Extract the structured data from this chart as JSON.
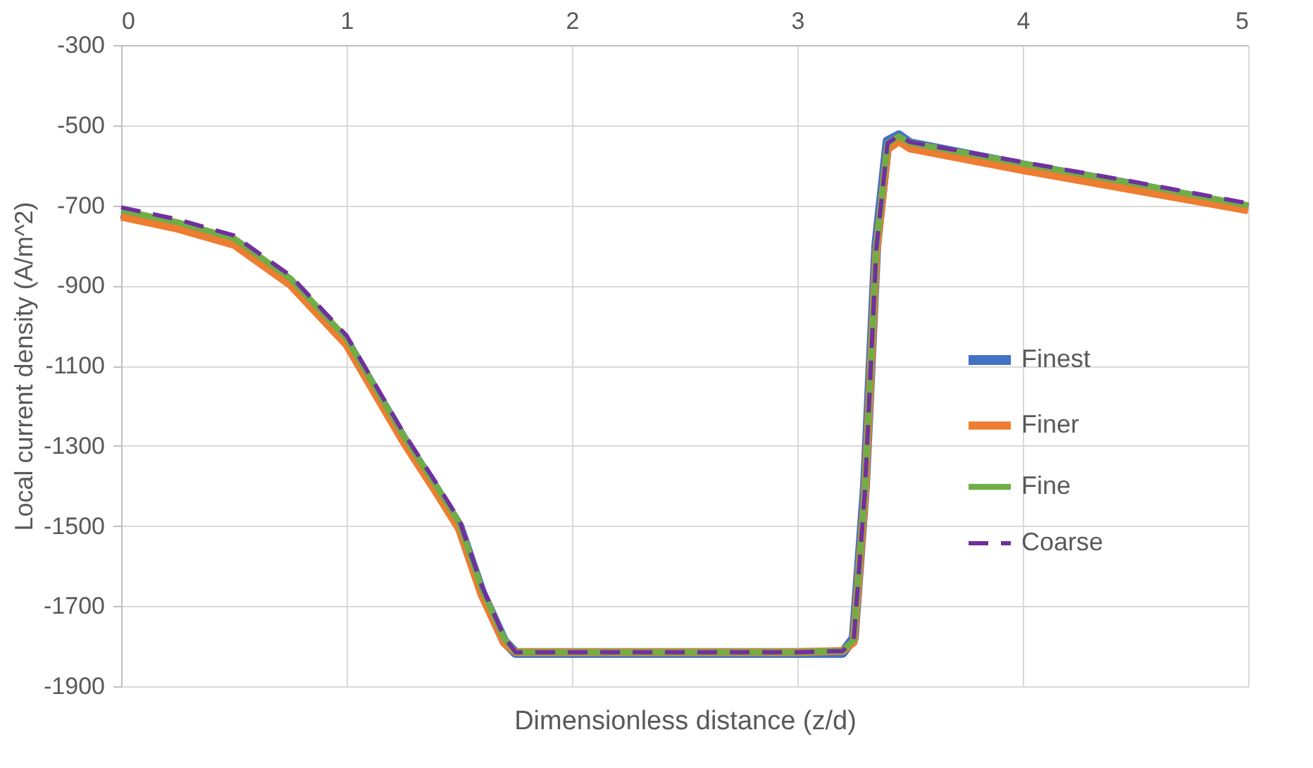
{
  "chart_data": {
    "type": "line",
    "xlabel": "Dimensionless distance (z/d)",
    "ylabel": "Local current density (A/m^2)",
    "x": [
      0,
      0.25,
      0.5,
      0.75,
      1,
      1.25,
      1.4,
      1.5,
      1.6,
      1.7,
      1.75,
      2,
      2.5,
      3,
      3.2,
      3.25,
      3.3,
      3.35,
      3.4,
      3.45,
      3.5,
      4,
      4.5,
      5
    ],
    "series": [
      {
        "name": "Finest",
        "color": "#4472c4",
        "values": [
          -720,
          -750,
          -790,
          -890,
          -1040,
          -1280,
          -1410,
          -1500,
          -1665,
          -1788,
          -1817,
          -1817,
          -1817,
          -1817,
          -1817,
          -1780,
          -1400,
          -800,
          -540,
          -525,
          -545,
          -600,
          -650,
          -706
        ]
      },
      {
        "name": "Finer",
        "color": "#ed7d31",
        "values": [
          -728,
          -758,
          -798,
          -898,
          -1048,
          -1288,
          -1418,
          -1508,
          -1673,
          -1793,
          -1815,
          -1815,
          -1815,
          -1815,
          -1812,
          -1790,
          -1420,
          -820,
          -560,
          -540,
          -558,
          -612,
          -662,
          -712
        ]
      },
      {
        "name": "Fine",
        "color": "#70ad47",
        "values": [
          -712,
          -742,
          -782,
          -882,
          -1032,
          -1272,
          -1402,
          -1492,
          -1657,
          -1782,
          -1815,
          -1815,
          -1815,
          -1815,
          -1812,
          -1785,
          -1410,
          -810,
          -545,
          -528,
          -544,
          -596,
          -646,
          -700
        ]
      },
      {
        "name": "Coarse",
        "color": "#7030a0",
        "line_style": "dashed",
        "values": [
          -705,
          -735,
          -775,
          -875,
          -1025,
          -1265,
          -1395,
          -1485,
          -1650,
          -1778,
          -1815,
          -1815,
          -1815,
          -1815,
          -1812,
          -1785,
          -1410,
          -810,
          -545,
          -526,
          -542,
          -592,
          -642,
          -695
        ]
      }
    ],
    "xlim": [
      0,
      5
    ],
    "xticks": [
      0,
      1,
      2,
      3,
      4,
      5
    ],
    "ylim": [
      -1900,
      -300
    ],
    "yticks": [
      -1900,
      -1700,
      -1500,
      -1300,
      -1100,
      -900,
      -700,
      -500,
      -300
    ],
    "grid": true,
    "legend": "right",
    "marker": "none"
  }
}
